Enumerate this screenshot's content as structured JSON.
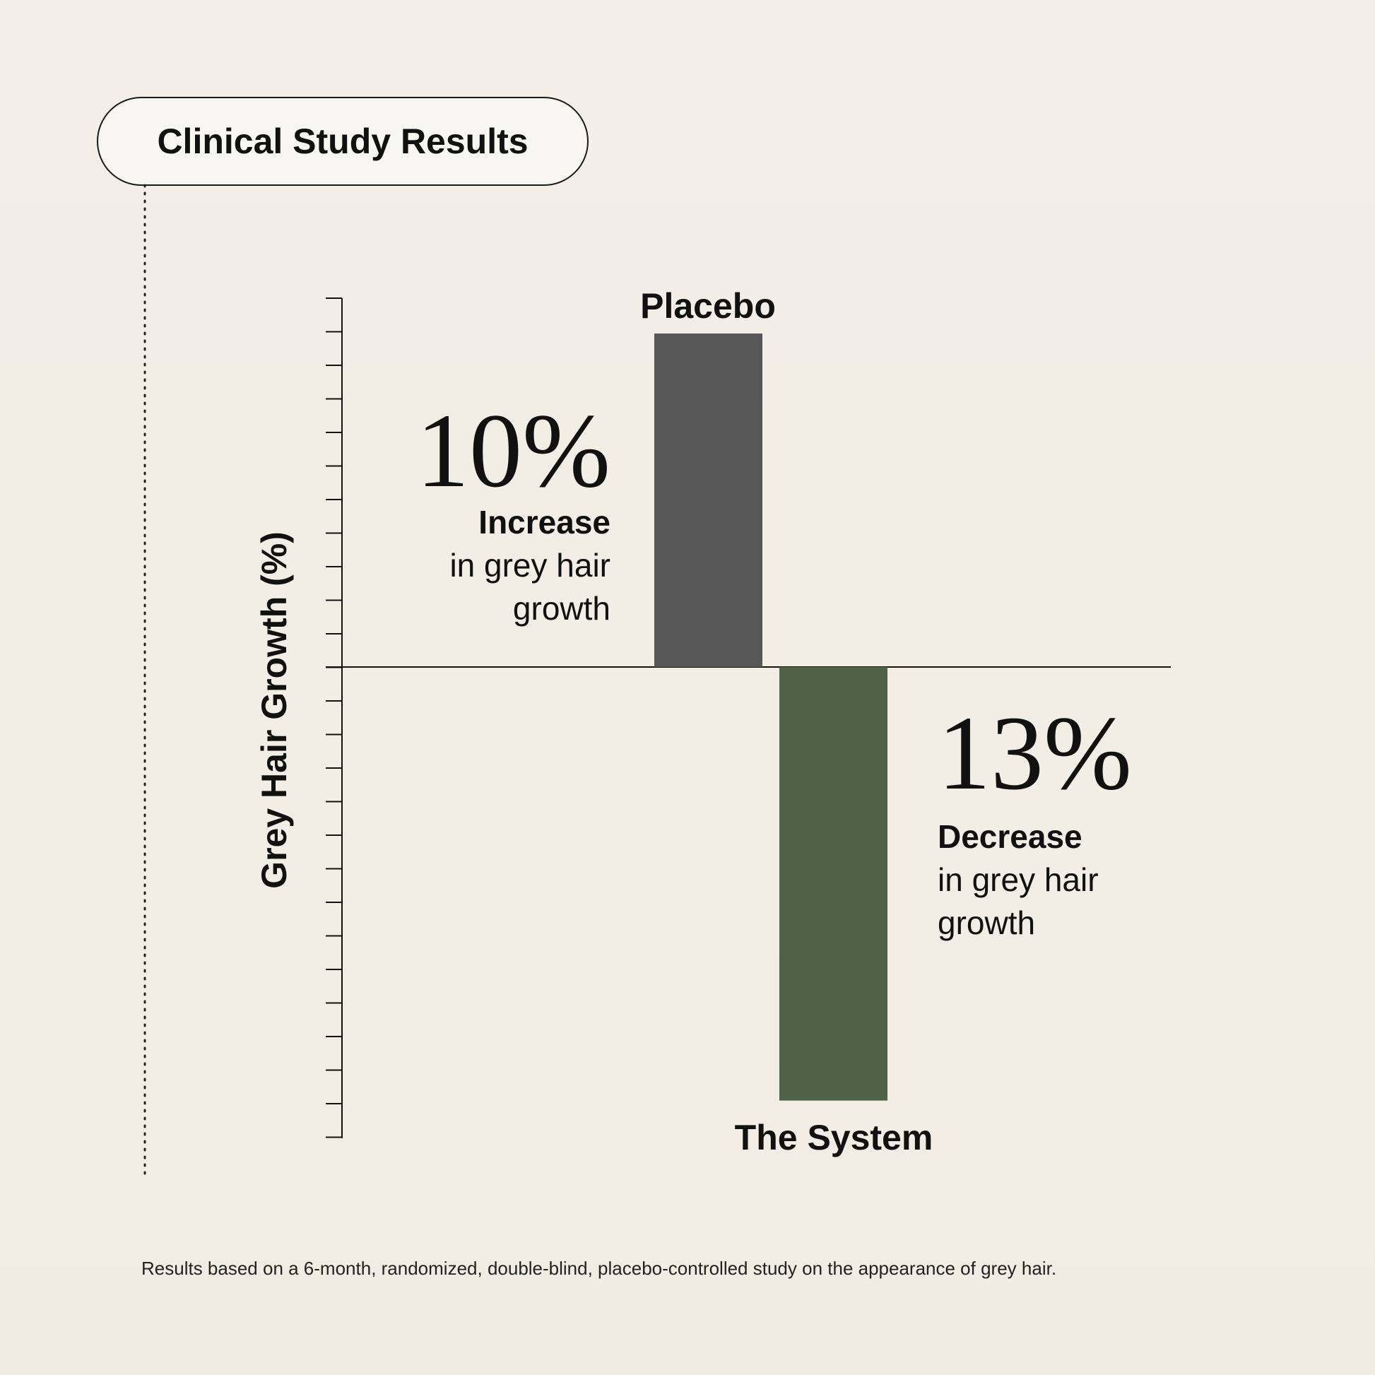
{
  "title": "Clinical Study Results",
  "footnote": "Results based on a 6-month, randomized, double-blind, placebo-controlled study on the appearance of grey hair.",
  "chart_data": {
    "type": "bar",
    "title": "Clinical Study Results",
    "xlabel": "",
    "ylabel": "Grey Hair Growth (%)",
    "ylim": [
      -13,
      10
    ],
    "grid": false,
    "categories": [
      "Placebo",
      "The System"
    ],
    "values": [
      10,
      -13
    ],
    "colors": [
      "#575757",
      "#4d6246"
    ],
    "callouts": [
      {
        "value_text": "10%",
        "bold_text": "Increase",
        "line1": "in grey hair",
        "line2": "growth"
      },
      {
        "value_text": "13%",
        "bold_text": "Decrease",
        "line1": "in grey hair",
        "line2": "growth"
      }
    ]
  }
}
